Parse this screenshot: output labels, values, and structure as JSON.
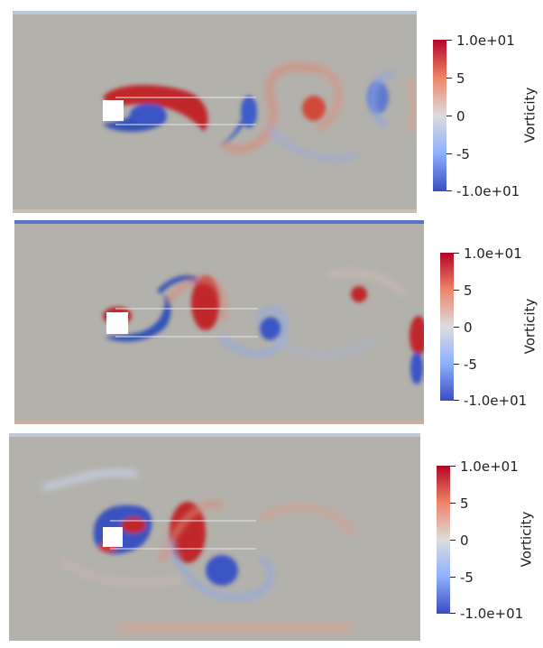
{
  "colormap": {
    "high": "#b40426",
    "mid": "#dddcdc",
    "low": "#3b4cc0",
    "background": "#b3b1ab"
  },
  "panels": [
    {
      "colorbar": {
        "title": "Vorticity",
        "ticks": [
          "1.0e+01",
          "5",
          "0",
          "-5",
          "-1.0e+01"
        ]
      },
      "obstacle_color": "#ffffff"
    },
    {
      "colorbar": {
        "title": "Vorticity",
        "ticks": [
          "1.0e+01",
          "5",
          "0",
          "-5",
          "-1.0e+01"
        ]
      },
      "obstacle_color": "#ffffff"
    },
    {
      "colorbar": {
        "title": "Vorticity",
        "ticks": [
          "1.0e+01",
          "5",
          "0",
          "-5",
          "-1.0e+01"
        ]
      },
      "obstacle_color": "#ffffff"
    }
  ]
}
